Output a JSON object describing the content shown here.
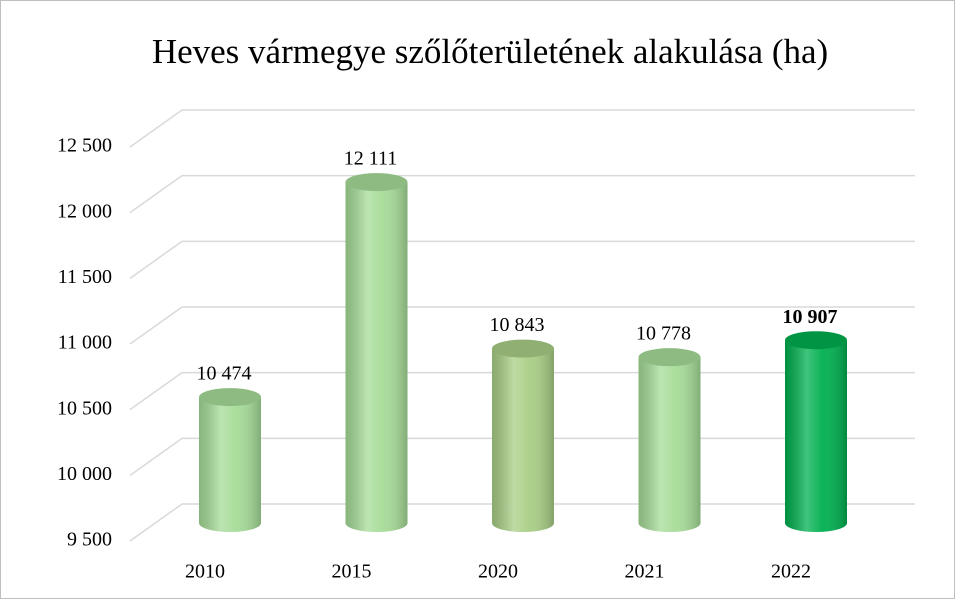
{
  "chart_data": {
    "type": "bar",
    "title": "Heves vármegye szőlőterületének alakulása (ha)",
    "categories": [
      "2010",
      "2015",
      "2020",
      "2021",
      "2022"
    ],
    "values": [
      10474,
      12111,
      10843,
      10778,
      10907
    ],
    "value_labels": [
      "10 474",
      "12 111",
      "10 843",
      "10 778",
      "10 907"
    ],
    "colors": [
      "#a6dc98",
      "#a6dc98",
      "#a9cf86",
      "#a6dc98",
      "#00b050"
    ],
    "highlight_category": "2022",
    "ylim": [
      9500,
      12500
    ],
    "yticks": [
      {
        "value": 9500,
        "label": "9 500"
      },
      {
        "value": 10000,
        "label": "10 000"
      },
      {
        "value": 10500,
        "label": "10 500"
      },
      {
        "value": 11000,
        "label": "11 000"
      },
      {
        "value": 11500,
        "label": "11 500"
      },
      {
        "value": 12000,
        "label": "12 000"
      },
      {
        "value": 12500,
        "label": "12 500"
      }
    ],
    "grid": true
  }
}
